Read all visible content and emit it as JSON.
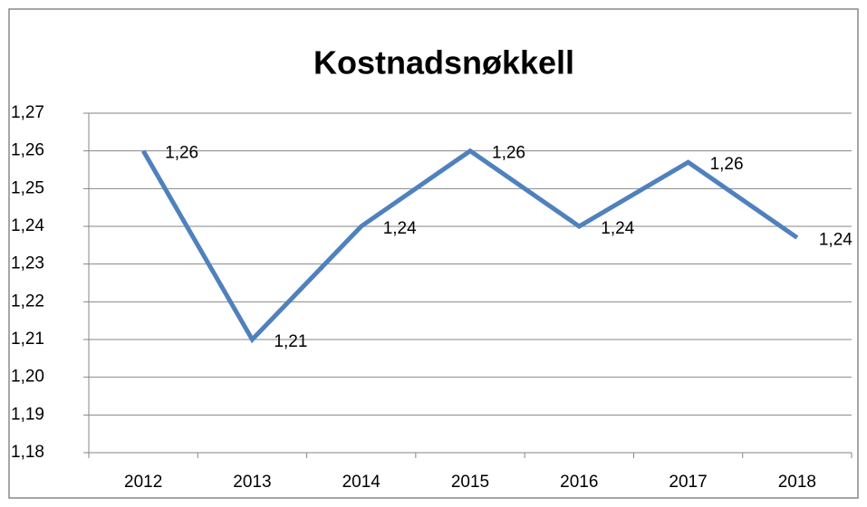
{
  "chart_data": {
    "type": "line",
    "title": "Kostnadsnøkkell",
    "categories": [
      "2012",
      "2013",
      "2014",
      "2015",
      "2016",
      "2017",
      "2018"
    ],
    "values": [
      1.26,
      1.21,
      1.24,
      1.26,
      1.24,
      1.257,
      1.237
    ],
    "value_labels": [
      "1,26",
      "1,21",
      "1,24",
      "1,26",
      "1,24",
      "1,26",
      "1,24"
    ],
    "color": "#4f81bd",
    "ylim": [
      1.18,
      1.27
    ],
    "yticks": [
      {
        "value": 1.18,
        "label": "1,18"
      },
      {
        "value": 1.19,
        "label": "1,19"
      },
      {
        "value": 1.2,
        "label": "1,20"
      },
      {
        "value": 1.21,
        "label": "1,21"
      },
      {
        "value": 1.22,
        "label": "1,22"
      },
      {
        "value": 1.23,
        "label": "1,23"
      },
      {
        "value": 1.24,
        "label": "1,24"
      },
      {
        "value": 1.25,
        "label": "1,25"
      },
      {
        "value": 1.26,
        "label": "1,26"
      },
      {
        "value": 1.27,
        "label": "1,27"
      }
    ],
    "grid": true
  }
}
